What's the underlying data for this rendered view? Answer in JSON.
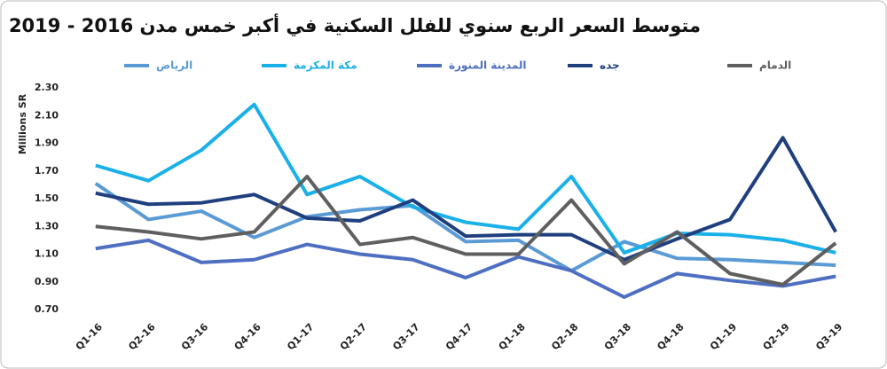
{
  "chart_data": {
    "type": "line",
    "title": "متوسط السعر الربع سنوي للفلل السكنية في أكبر خمس مدن 2016 - 2019",
    "y_label": "Millions SR",
    "categories": [
      "Q1-16",
      "Q2-16",
      "Q3-16",
      "Q4-16",
      "Q1-17",
      "Q2-17",
      "Q3-17",
      "Q4-17",
      "Q1-18",
      "Q2-18",
      "Q3-18",
      "Q4-18",
      "Q1-19",
      "Q2-19",
      "Q3-19"
    ],
    "series": [
      {
        "name": "الرياض",
        "color": "#5b9bd5",
        "values": [
          1.61,
          1.35,
          1.41,
          1.22,
          1.37,
          1.42,
          1.45,
          1.19,
          1.2,
          0.98,
          1.19,
          1.07,
          1.06,
          1.04,
          1.02
        ]
      },
      {
        "name": "مكة المكرمة",
        "color": "#1ab0e8",
        "values": [
          1.74,
          1.63,
          1.85,
          2.18,
          1.53,
          1.66,
          1.44,
          1.33,
          1.28,
          1.66,
          1.11,
          1.25,
          1.24,
          1.2,
          1.11
        ]
      },
      {
        "name": "المدينة المنورة",
        "color": "#4e6fc1",
        "values": [
          1.14,
          1.2,
          1.04,
          1.06,
          1.17,
          1.1,
          1.06,
          0.93,
          1.08,
          0.98,
          0.79,
          0.96,
          0.91,
          0.87,
          0.94
        ]
      },
      {
        "name": "جده",
        "color": "#203f7f",
        "values": [
          1.54,
          1.46,
          1.47,
          1.53,
          1.36,
          1.34,
          1.49,
          1.23,
          1.24,
          1.24,
          1.06,
          1.21,
          1.35,
          1.94,
          1.26
        ]
      },
      {
        "name": "الدمام",
        "color": "#5f5f5f",
        "values": [
          1.3,
          1.26,
          1.21,
          1.26,
          1.66,
          1.17,
          1.22,
          1.1,
          1.1,
          1.49,
          1.03,
          1.26,
          0.96,
          0.88,
          1.18
        ]
      }
    ],
    "ylim": [
      0.7,
      2.3
    ],
    "yticks": [
      {
        "value": 0.7,
        "label": "0.70"
      },
      {
        "value": 0.9,
        "label": "0.90"
      },
      {
        "value": 1.1,
        "label": "1.10"
      },
      {
        "value": 1.3,
        "label": "1.30"
      },
      {
        "value": 1.5,
        "label": "1.50"
      },
      {
        "value": 1.7,
        "label": "1.70"
      },
      {
        "value": 1.9,
        "label": "1.90"
      },
      {
        "value": 2.1,
        "label": "2.10"
      },
      {
        "value": 2.3,
        "label": "2.30"
      }
    ],
    "grid": false
  }
}
